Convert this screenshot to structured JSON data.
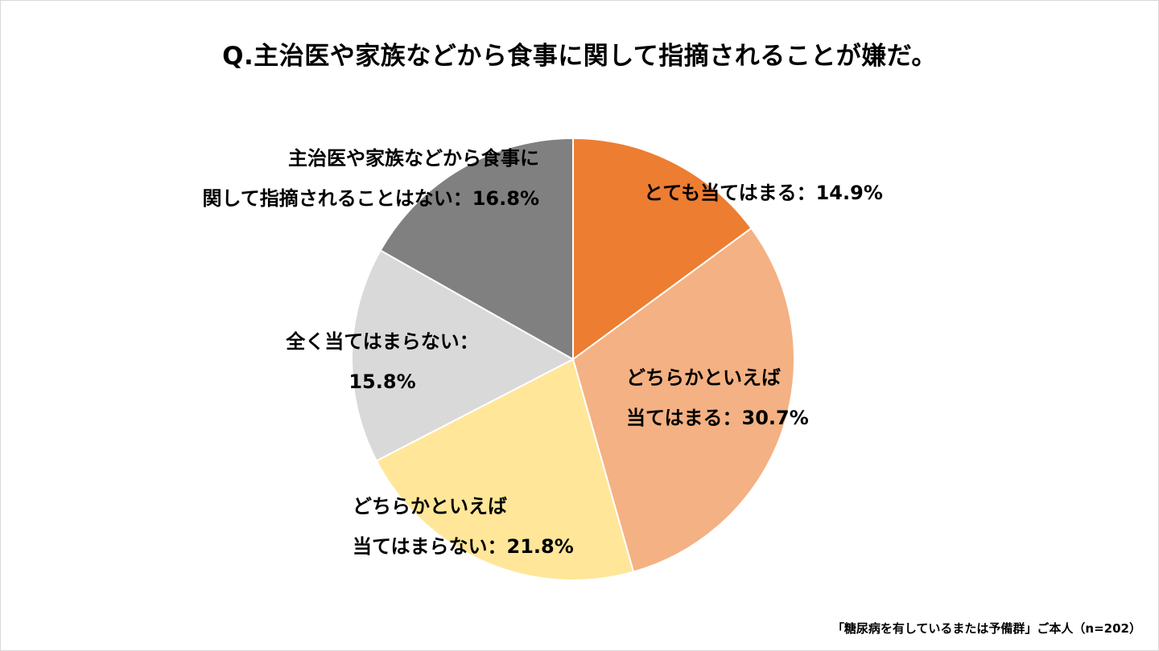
{
  "chart_data": {
    "type": "pie",
    "title": "Q.主治医や家族などから食事に関して指摘されることが嫌だ。",
    "slices": [
      {
        "label_lines": [
          "とても当てはまる：14.9%"
        ],
        "value": 14.9,
        "color": "#ED7D31"
      },
      {
        "label_lines": [
          "どちらかといえば",
          "当てはまる：30.7%"
        ],
        "value": 30.7,
        "color": "#F4B183"
      },
      {
        "label_lines": [
          "どちらかといえば",
          "当てはまらない：21.8%"
        ],
        "value": 21.8,
        "color": "#FFE699"
      },
      {
        "label_lines": [
          "全く当てはまらない：",
          "15.8%"
        ],
        "value": 15.8,
        "color": "#D9D9D9"
      },
      {
        "label_lines": [
          "主治医や家族などから食事に",
          "関して指摘されることはない：16.8%"
        ],
        "value": 16.8,
        "color": "#808080"
      }
    ],
    "start_angle": "12 o'clock",
    "direction": "clockwise",
    "legend": "none"
  },
  "footnote": "「糖尿病を有しているまたは予備群」ご本人（n=202）"
}
